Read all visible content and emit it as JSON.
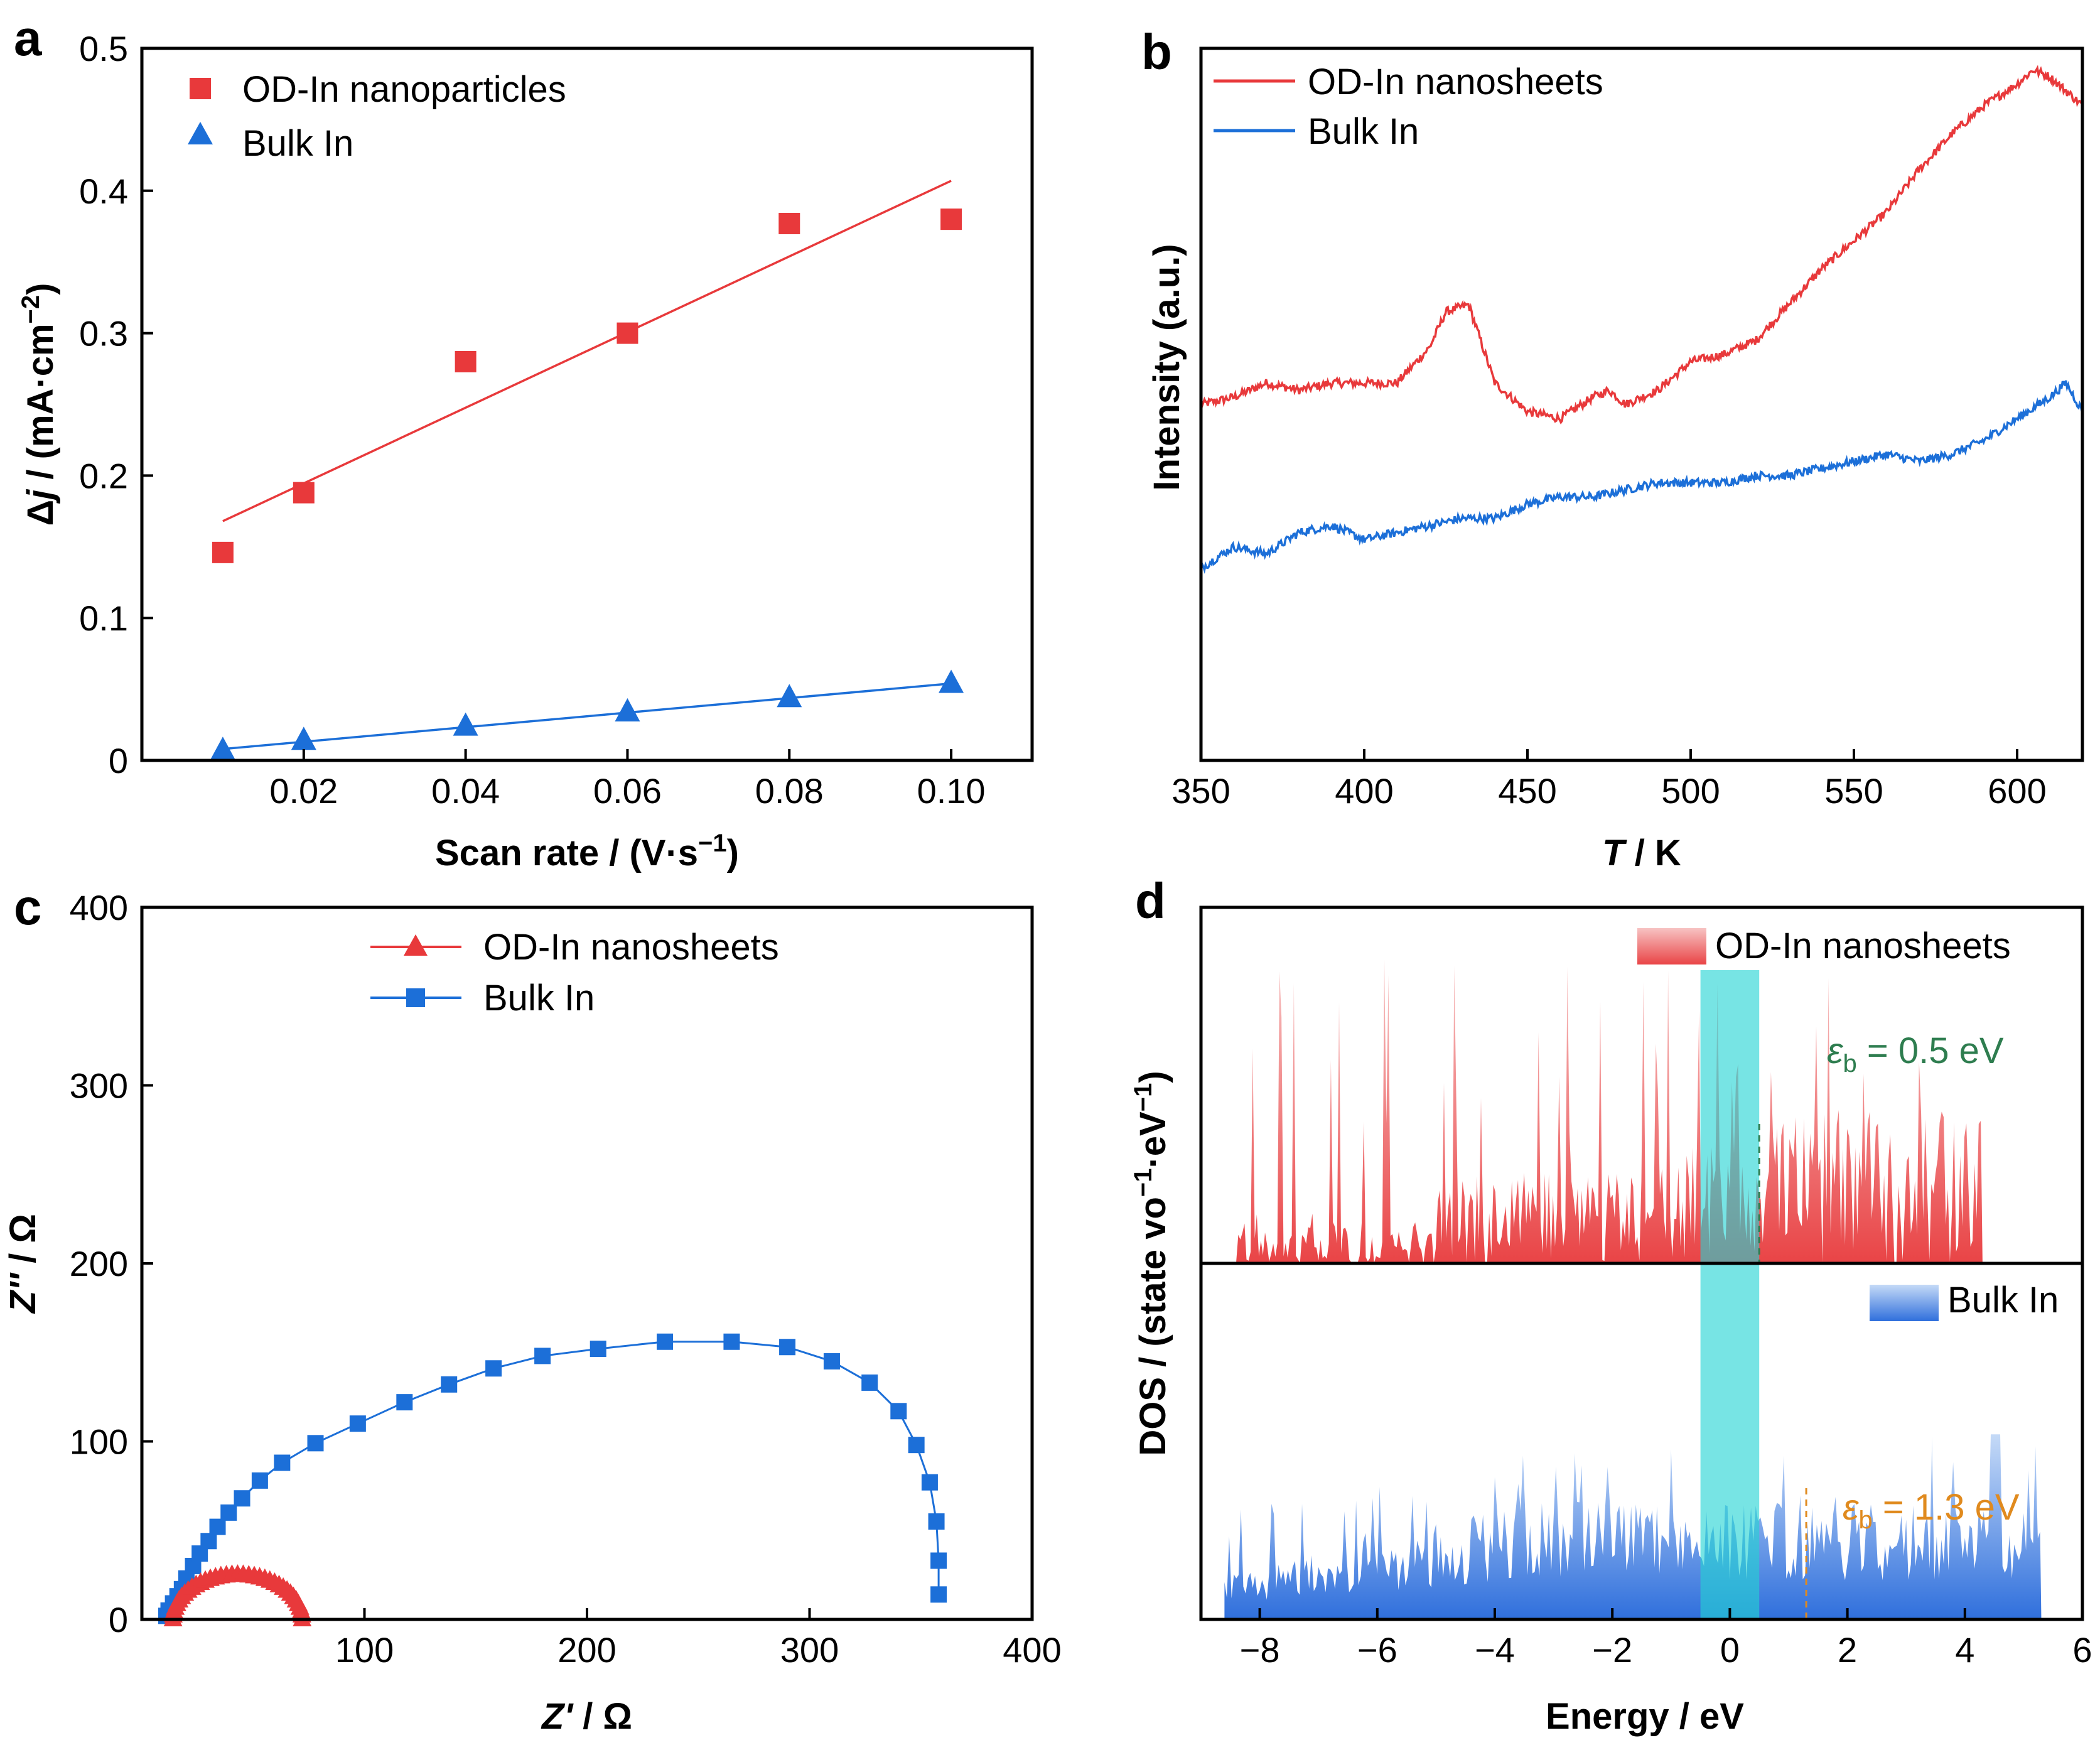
{
  "chart_data": [
    {
      "panel": "a",
      "type": "scatter",
      "xlabel": "Scan rate / (V·s⁻¹)",
      "ylabel": "Δj / (mA·cm⁻²)",
      "xlim": [
        0,
        0.11
      ],
      "ylim": [
        0,
        0.5
      ],
      "xticks": [
        "0.02",
        "0.04",
        "0.06",
        "0.08",
        "0.10"
      ],
      "yticks": [
        "0",
        "0.1",
        "0.2",
        "0.3",
        "0.4",
        "0.5"
      ],
      "legend_position": "top-left",
      "series": [
        {
          "name": "OD-In nanoparticles",
          "marker": "square",
          "color": "#e8393b",
          "x": [
            0.01,
            0.02,
            0.04,
            0.06,
            0.08,
            0.1
          ],
          "y": [
            0.146,
            0.188,
            0.28,
            0.3,
            0.377,
            0.38
          ],
          "fit": [
            [
              0.01,
              0.168
            ],
            [
              0.1,
              0.407
            ]
          ]
        },
        {
          "name": "Bulk In",
          "marker": "triangle",
          "color": "#1c6fd8",
          "x": [
            0.01,
            0.02,
            0.04,
            0.06,
            0.08,
            0.1
          ],
          "y": [
            0.007,
            0.014,
            0.024,
            0.034,
            0.044,
            0.054
          ],
          "fit": [
            [
              0.01,
              0.008
            ],
            [
              0.1,
              0.054
            ]
          ]
        }
      ]
    },
    {
      "panel": "b",
      "type": "line",
      "xlabel": "T / K",
      "ylabel": "Intensity (a.u.)",
      "xlim": [
        350,
        620
      ],
      "xticks": [
        "350",
        "400",
        "450",
        "500",
        "550",
        "600"
      ],
      "legend_position": "top-left",
      "series": [
        {
          "name": "OD-In nanosheets",
          "color": "#e8393b",
          "x": [
            350,
            360,
            370,
            380,
            390,
            400,
            410,
            420,
            425,
            432,
            440,
            450,
            460,
            470,
            475,
            480,
            490,
            500,
            510,
            520,
            530,
            540,
            550,
            560,
            570,
            580,
            590,
            600,
            605,
            610,
            620
          ],
          "y": [
            0.5,
            0.51,
            0.53,
            0.52,
            0.53,
            0.53,
            0.53,
            0.58,
            0.63,
            0.64,
            0.53,
            0.49,
            0.48,
            0.51,
            0.52,
            0.5,
            0.52,
            0.56,
            0.57,
            0.59,
            0.64,
            0.69,
            0.73,
            0.77,
            0.83,
            0.88,
            0.92,
            0.95,
            0.97,
            0.96,
            0.92
          ]
        },
        {
          "name": "Bulk In",
          "color": "#1c6fd8",
          "x": [
            350,
            360,
            370,
            380,
            390,
            400,
            410,
            420,
            430,
            440,
            450,
            460,
            470,
            480,
            490,
            500,
            510,
            520,
            530,
            540,
            550,
            560,
            570,
            580,
            590,
            600,
            610,
            615,
            620
          ],
          "y": [
            0.27,
            0.3,
            0.29,
            0.32,
            0.33,
            0.31,
            0.32,
            0.33,
            0.34,
            0.34,
            0.36,
            0.37,
            0.37,
            0.38,
            0.39,
            0.39,
            0.39,
            0.4,
            0.4,
            0.41,
            0.42,
            0.43,
            0.42,
            0.43,
            0.45,
            0.48,
            0.51,
            0.53,
            0.49
          ]
        }
      ]
    },
    {
      "panel": "c",
      "type": "line",
      "xlabel": "Z′ / Ω",
      "ylabel": "Z″ / Ω",
      "xlim": [
        0,
        400
      ],
      "ylim": [
        0,
        400
      ],
      "xticks": [
        "100",
        "200",
        "300",
        "400"
      ],
      "yticks": [
        "0",
        "100",
        "200",
        "300",
        "400"
      ],
      "legend_position": "top-center",
      "series": [
        {
          "name": "OD-In nanosheets",
          "marker": "triangle",
          "color": "#e8393b",
          "semicircle": {
            "x_start": 14,
            "x_end": 72,
            "peak": 25
          }
        },
        {
          "name": "Bulk In",
          "marker": "square",
          "color": "#1c6fd8",
          "x": [
            11,
            12,
            14,
            16,
            18,
            20,
            23,
            26,
            30,
            34,
            39,
            45,
            53,
            63,
            78,
            97,
            118,
            138,
            158,
            180,
            205,
            235,
            265,
            290,
            310,
            327,
            340,
            348,
            354,
            357,
            358,
            358
          ],
          "y": [
            2,
            5,
            9,
            13,
            17,
            23,
            30,
            37,
            44,
            52,
            60,
            68,
            78,
            88,
            99,
            110,
            122,
            132,
            141,
            148,
            152,
            156,
            156,
            153,
            145,
            133,
            117,
            98,
            77,
            55,
            33,
            14
          ]
        }
      ]
    },
    {
      "panel": "d",
      "type": "area",
      "xlabel": "Energy / eV",
      "ylabel": "DOS / (state vo⁻¹·eV⁻¹)",
      "xlim": [
        -9,
        6
      ],
      "xticks": [
        "−8",
        "−6",
        "−4",
        "−2",
        "0",
        "2",
        "4",
        "6"
      ],
      "highlight_band": [
        -0.5,
        0.5
      ],
      "series": [
        {
          "name": "OD-In nanosheets",
          "color": "#e8393b",
          "legend_position": "top-right",
          "annotation": "εb = 0.5 eV",
          "annotation_color": "#2e7d4f",
          "band_center": 0.5,
          "range": [
            -8.4,
            4.3
          ]
        },
        {
          "name": "Bulk In",
          "color": "#2f72d8",
          "legend_position": "top-right",
          "annotation": "εb = 1.3 eV",
          "annotation_color": "#e08a1e",
          "band_center": 1.3,
          "range": [
            -8.6,
            5.3
          ]
        }
      ]
    }
  ],
  "labels": {
    "a": {
      "panel": "a",
      "ytitle_prefix": "Δ",
      "ytitle_italic": "j",
      "ytitle_rest": " / (mA·cm",
      "ytitle_sup": "−2",
      "ytitle_close": ")",
      "xtitle_main": "Scan rate / (V·s",
      "xtitle_sup": "−1",
      "xtitle_close": ")"
    },
    "b": {
      "panel": "b",
      "ytitle": "Intensity (a.u.)",
      "xtitle_italic": "T",
      "xtitle_rest": " / K"
    },
    "c": {
      "panel": "c",
      "ytitle_italic": "Z''",
      "ytitle_rest": " / Ω",
      "xtitle_italic": "Z'",
      "xtitle_rest": " / Ω"
    },
    "d": {
      "panel": "d",
      "ytitle_a": "DOS / (state vo",
      "ytitle_sup1": "−1",
      "ytitle_b": "·eV",
      "ytitle_sup2": "−1",
      "ytitle_c": ")",
      "xtitle": "Energy / eV",
      "ann1_eps": "ε",
      "ann1_sub": "b",
      "ann1_rest": " = 0.5 eV",
      "ann2_eps": "ε",
      "ann2_sub": "b",
      "ann2_rest": " = 1.3 eV"
    }
  }
}
